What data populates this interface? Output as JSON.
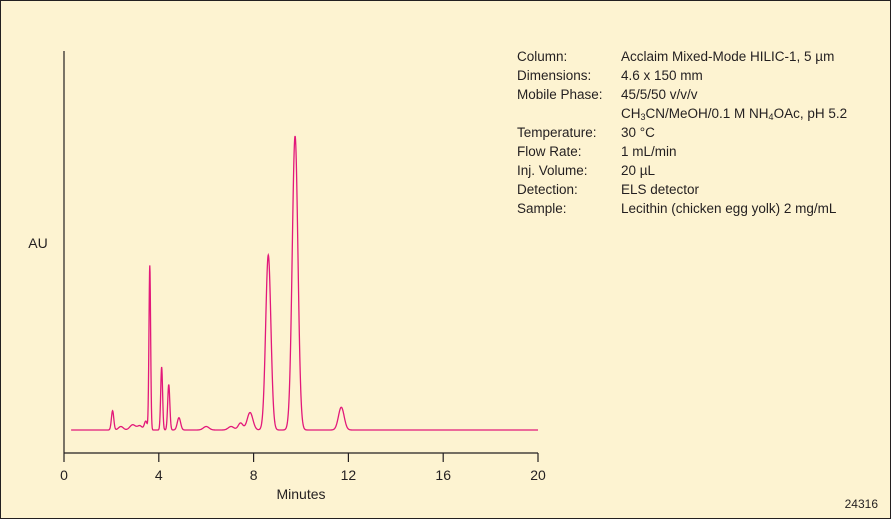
{
  "chart_data": {
    "type": "line",
    "xlabel": "Minutes",
    "ylabel": "AU",
    "xlim": [
      0,
      20
    ],
    "ylim": [
      0,
      100
    ],
    "x_ticks": [
      0,
      4,
      8,
      12,
      16,
      20
    ],
    "x_tick_labels": [
      "0",
      "4",
      "8",
      "12",
      "16",
      "20"
    ],
    "grid": false,
    "baseline": 0.0,
    "peaks": [
      {
        "rt": 2.05,
        "height": 5.5,
        "sigma": 0.05
      },
      {
        "rt": 2.4,
        "height": 1.0,
        "sigma": 0.1
      },
      {
        "rt": 2.9,
        "height": 1.5,
        "sigma": 0.12
      },
      {
        "rt": 3.2,
        "height": 1.2,
        "sigma": 0.1
      },
      {
        "rt": 3.45,
        "height": 2.5,
        "sigma": 0.06
      },
      {
        "rt": 3.62,
        "height": 47.0,
        "sigma": 0.035
      },
      {
        "rt": 4.12,
        "height": 18.0,
        "sigma": 0.04
      },
      {
        "rt": 4.42,
        "height": 13.0,
        "sigma": 0.045
      },
      {
        "rt": 4.85,
        "height": 3.5,
        "sigma": 0.07
      },
      {
        "rt": 6.0,
        "height": 1.0,
        "sigma": 0.12
      },
      {
        "rt": 7.05,
        "height": 1.0,
        "sigma": 0.12
      },
      {
        "rt": 7.45,
        "height": 2.0,
        "sigma": 0.1
      },
      {
        "rt": 7.85,
        "height": 5.0,
        "sigma": 0.12
      },
      {
        "rt": 8.62,
        "height": 50.0,
        "sigma": 0.11
      },
      {
        "rt": 9.75,
        "height": 84.0,
        "sigma": 0.12
      },
      {
        "rt": 11.7,
        "height": 6.5,
        "sigma": 0.12
      }
    ],
    "line_color": "#e2187a",
    "annotation": "24316"
  },
  "conditions": {
    "column": {
      "label": "Column:",
      "value": "Acclaim Mixed-Mode HILIC-1, 5 µm"
    },
    "dimensions": {
      "label": "Dimensions:",
      "value": "4.6 x 150 mm"
    },
    "mobile_phase": {
      "label": "Mobile Phase:",
      "value": "45/5/50 v/v/v",
      "value2": {
        "a": "CH",
        "a_sub": "3",
        "b": "CN/MeOH/0.1 M NH",
        "b_sub": "4",
        "c": "OAc, pH 5.2"
      }
    },
    "temperature": {
      "label": "Temperature:",
      "value": "30 °C"
    },
    "flow_rate": {
      "label": "Flow Rate:",
      "value": "1 mL/min"
    },
    "inj_volume": {
      "label": "Inj. Volume:",
      "value": "20 µL"
    },
    "detection": {
      "label": "Detection:",
      "value": "ELS detector"
    },
    "sample": {
      "label": "Sample:",
      "value": "Lecithin (chicken egg yolk) 2 mg/mL"
    }
  }
}
